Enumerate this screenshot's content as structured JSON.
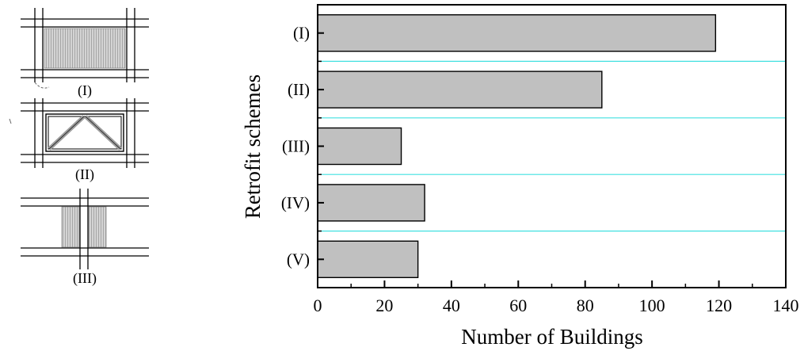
{
  "figure": {
    "scheme_labels": [
      "(I)",
      "(II)",
      "(III)"
    ]
  },
  "chart_data": {
    "type": "bar",
    "orientation": "horizontal",
    "categories": [
      "(I)",
      "(II)",
      "(III)",
      "(IV)",
      "(V)"
    ],
    "values": [
      119,
      85,
      25,
      32,
      30
    ],
    "xlabel": "Number of Buildings",
    "ylabel": "Retrofit schemes",
    "xlim": [
      0,
      140
    ],
    "xticks": [
      "0",
      "20",
      "40",
      "60",
      "80",
      "100",
      "120",
      "140"
    ],
    "bar_color": "#c0c0c0",
    "separator_color": "#40e0e0",
    "grid": false
  }
}
